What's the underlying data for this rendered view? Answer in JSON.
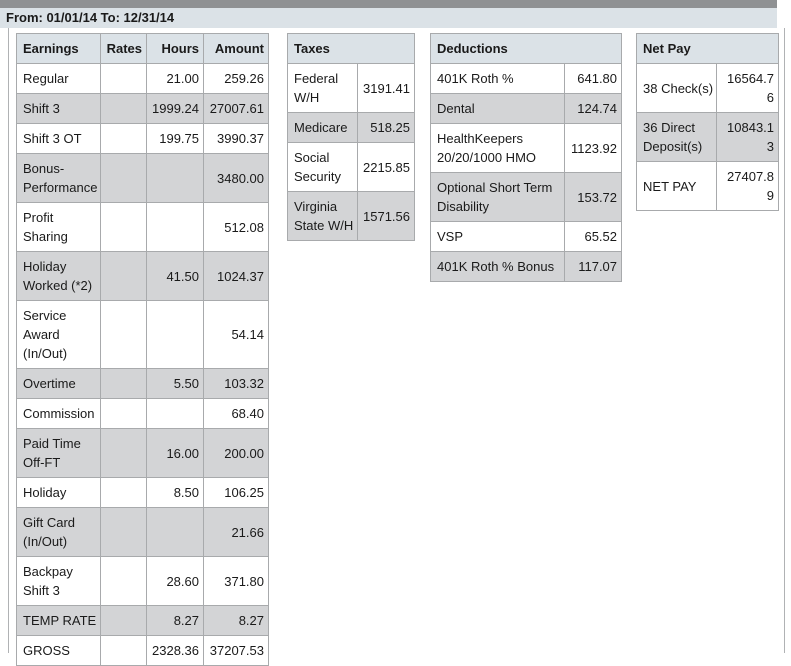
{
  "colors": {
    "top_bar": "#8f9193",
    "panel_bg": "#dbe2e7",
    "alt_row": "#d3d4d6",
    "table_border": "#a8aaac",
    "frame_border": "#b0b2b4",
    "text": "#1a1a1a"
  },
  "header": {
    "date_range": "From: 01/01/14 To: 12/31/14"
  },
  "tables": {
    "earnings": {
      "headers": [
        "Earnings",
        "Rates",
        "Hours",
        "Amount"
      ],
      "rows": [
        {
          "label": "Regular",
          "rates": "",
          "hours": "21.00",
          "amount": "259.26"
        },
        {
          "label": "Shift 3",
          "rates": "",
          "hours": "1999.24",
          "amount": "27007.61"
        },
        {
          "label": "Shift 3 OT",
          "rates": "",
          "hours": "199.75",
          "amount": "3990.37"
        },
        {
          "label": "Bonus-Performance",
          "rates": "",
          "hours": "",
          "amount": "3480.00"
        },
        {
          "label": "Profit Sharing",
          "rates": "",
          "hours": "",
          "amount": "512.08"
        },
        {
          "label": "Holiday Worked (*2)",
          "rates": "",
          "hours": "41.50",
          "amount": "1024.37"
        },
        {
          "label": "Service Award (In/Out)",
          "rates": "",
          "hours": "",
          "amount": "54.14"
        },
        {
          "label": "Overtime",
          "rates": "",
          "hours": "5.50",
          "amount": "103.32"
        },
        {
          "label": "Commission",
          "rates": "",
          "hours": "",
          "amount": "68.40"
        },
        {
          "label": "Paid Time Off-FT",
          "rates": "",
          "hours": "16.00",
          "amount": "200.00"
        },
        {
          "label": "Holiday",
          "rates": "",
          "hours": "8.50",
          "amount": "106.25"
        },
        {
          "label": "Gift Card (In/Out)",
          "rates": "",
          "hours": "",
          "amount": "21.66"
        },
        {
          "label": "Backpay Shift 3",
          "rates": "",
          "hours": "28.60",
          "amount": "371.80"
        },
        {
          "label": "TEMP RATE",
          "rates": "",
          "hours": "8.27",
          "amount": "8.27"
        },
        {
          "label": "GROSS",
          "rates": "",
          "hours": "2328.36",
          "amount": "37207.53"
        }
      ]
    },
    "taxes": {
      "title": "Taxes",
      "rows": [
        {
          "label": "Federal W/H",
          "amount": "3191.41"
        },
        {
          "label": "Medicare",
          "amount": "518.25"
        },
        {
          "label": "Social Security",
          "amount": "2215.85"
        },
        {
          "label": "Virginia State W/H",
          "amount": "1571.56"
        }
      ]
    },
    "deductions": {
      "title": "Deductions",
      "rows": [
        {
          "label": "401K Roth %",
          "amount": "641.80"
        },
        {
          "label": "Dental",
          "amount": "124.74"
        },
        {
          "label": "HealthKeepers 20/20/1000 HMO",
          "amount": "1123.92"
        },
        {
          "label": "Optional Short Term Disability",
          "amount": "153.72"
        },
        {
          "label": "VSP",
          "amount": "65.52"
        },
        {
          "label": "401K Roth % Bonus",
          "amount": "117.07"
        }
      ]
    },
    "net_pay": {
      "title": "Net Pay",
      "rows": [
        {
          "label": "38 Check(s)",
          "amount": "16564.76"
        },
        {
          "label": "36 Direct Deposit(s)",
          "amount": "10843.13"
        },
        {
          "label": "NET PAY",
          "amount": "27407.89"
        }
      ]
    }
  }
}
